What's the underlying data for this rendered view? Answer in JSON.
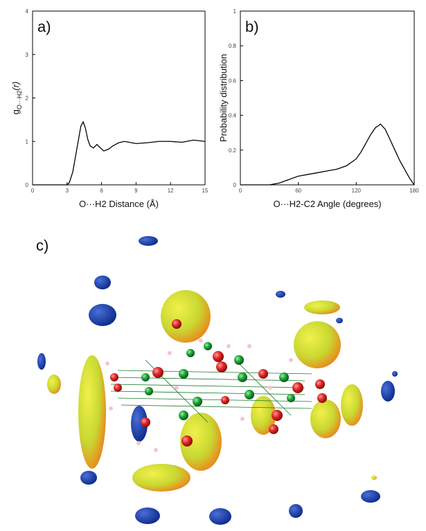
{
  "chart_data": [
    {
      "type": "line",
      "panel_label": "a)",
      "xlabel": "O···H2 Distance (Å)",
      "ylabel": {
        "main": "g",
        "sub": "O···H2",
        "tail": "(r)"
      },
      "x": [
        0,
        3,
        3.2,
        3.5,
        3.8,
        4.0,
        4.2,
        4.4,
        4.6,
        4.8,
        5.0,
        5.3,
        5.6,
        5.9,
        6.2,
        6.6,
        7.0,
        7.5,
        8,
        9,
        10,
        11,
        12,
        13,
        14,
        15
      ],
      "values": [
        0,
        0,
        0.05,
        0.3,
        0.75,
        1.05,
        1.35,
        1.45,
        1.3,
        1.05,
        0.9,
        0.85,
        0.93,
        0.85,
        0.78,
        0.82,
        0.9,
        0.97,
        1.0,
        0.95,
        0.97,
        1.0,
        1.0,
        0.98,
        1.03,
        1.0
      ],
      "color": "#000000",
      "xlim": [
        0,
        15
      ],
      "xticks": [
        0,
        3,
        6,
        9,
        12,
        15
      ],
      "ylim": [
        0,
        4
      ],
      "yticks": [
        0,
        1,
        2,
        3,
        4
      ]
    },
    {
      "type": "line",
      "panel_label": "b)",
      "xlabel": "O···H2-C2 Angle (degrees)",
      "ylabel": "Probability distribution",
      "x": [
        0,
        30,
        40,
        50,
        60,
        70,
        80,
        90,
        100,
        110,
        120,
        125,
        130,
        135,
        140,
        143,
        145,
        150,
        155,
        160,
        165,
        170,
        175,
        180
      ],
      "values": [
        0,
        0,
        0.01,
        0.03,
        0.05,
        0.06,
        0.07,
        0.08,
        0.09,
        0.11,
        0.15,
        0.19,
        0.24,
        0.29,
        0.33,
        0.34,
        0.35,
        0.32,
        0.26,
        0.2,
        0.14,
        0.09,
        0.04,
        0
      ],
      "color": "#000000",
      "xlim": [
        0,
        180
      ],
      "xticks": [
        0,
        60,
        120,
        180
      ],
      "ylim": [
        0,
        1
      ],
      "yticks": [
        0,
        0.2,
        0.4,
        0.6,
        0.8,
        1
      ]
    }
  ],
  "figure_c": {
    "panel_label": "c)"
  }
}
